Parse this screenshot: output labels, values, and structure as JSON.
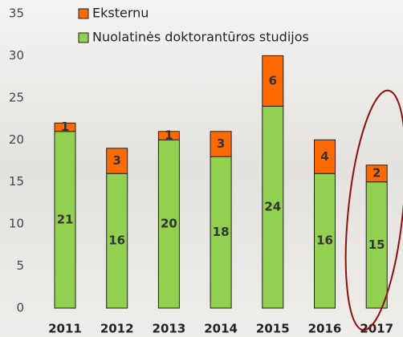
{
  "chart_data": {
    "type": "stacked_bar",
    "categories": [
      "2011",
      "2012",
      "2013",
      "2014",
      "2015",
      "2016",
      "2017"
    ],
    "series": [
      {
        "name": "Nuolatinės doktorantūros studijos",
        "color": "#92d050",
        "values": [
          21,
          16,
          20,
          18,
          24,
          16,
          15
        ]
      },
      {
        "name": "Eksternu",
        "color": "#ff6a00",
        "values": [
          1,
          3,
          1,
          3,
          6,
          4,
          2
        ]
      }
    ],
    "ylim": [
      0,
      35
    ],
    "yticks": [
      0,
      5,
      10,
      15,
      20,
      25,
      30,
      35
    ],
    "grid": false
  }
}
